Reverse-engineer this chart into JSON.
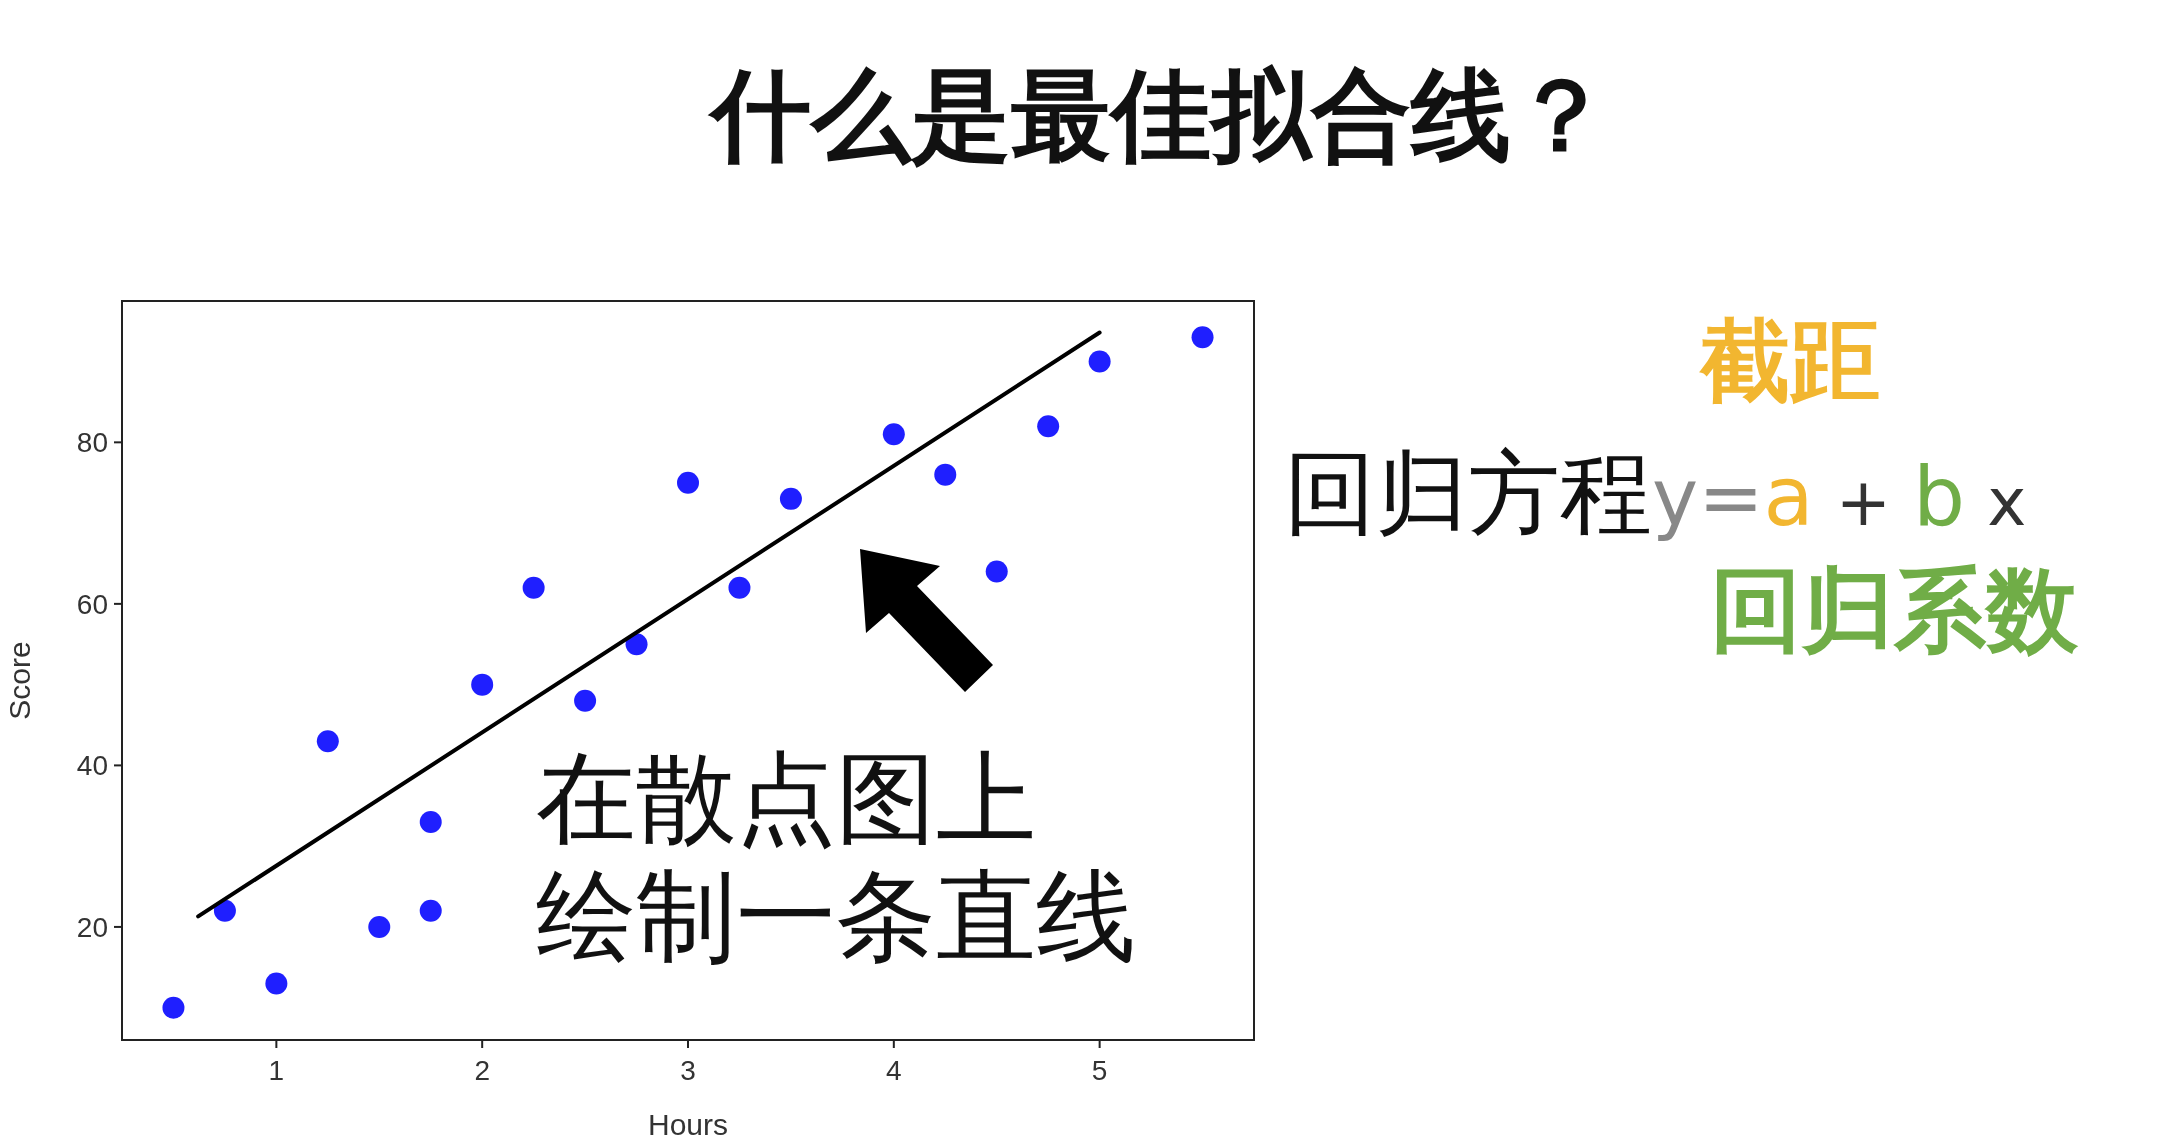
{
  "chart_data": {
    "type": "scatter",
    "title": "什么是最佳拟合线？",
    "xlabel": "Hours",
    "ylabel": "Score",
    "xlim": [
      0.25,
      5.75
    ],
    "ylim": [
      6,
      97.5
    ],
    "xticks": [
      1,
      2,
      3,
      4,
      5
    ],
    "yticks": [
      20,
      40,
      60,
      80
    ],
    "grid": false,
    "series": [
      {
        "color": "#1f1fff",
        "marker": "circle",
        "x": [
          0.5,
          0.75,
          1.0,
          1.25,
          1.5,
          1.75,
          1.75,
          2.0,
          2.25,
          2.5,
          2.75,
          3.0,
          3.25,
          3.5,
          4.0,
          4.25,
          4.5,
          4.75,
          5.0,
          5.5
        ],
        "values": [
          10,
          22,
          13,
          43,
          20,
          33,
          22,
          50,
          62,
          48,
          55,
          75,
          62,
          73,
          81,
          76,
          64,
          82,
          90,
          93
        ]
      },
      {
        "type": "line",
        "marker": "none",
        "color": "#000000",
        "x": [
          0.62,
          5.0
        ],
        "values": [
          21.3,
          93.6
        ]
      }
    ],
    "annotations": [
      "在散点图上",
      "绘制一条直线",
      "截距",
      "回归方程",
      "y=",
      "a",
      "+",
      "b",
      "x",
      "回归系数"
    ]
  }
}
